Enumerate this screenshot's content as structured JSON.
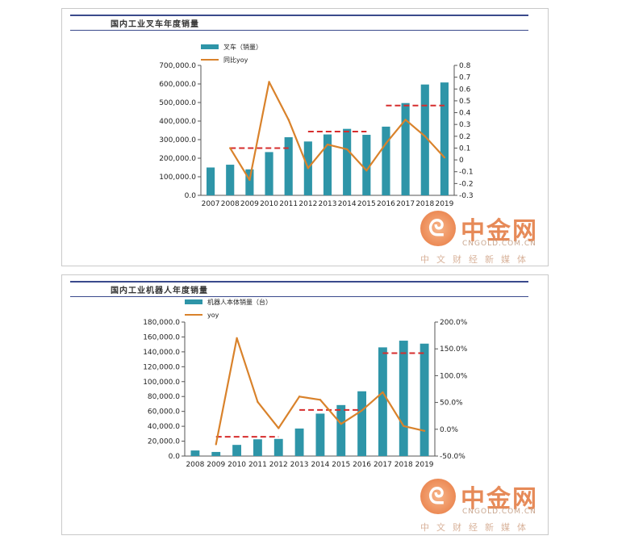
{
  "charts": [
    {
      "title": "国内工业叉车年度销量",
      "legend_bar": "叉车（销量）",
      "legend_line": "同比yoy",
      "watermark": {
        "name": "中金网",
        "url": "CNGOLD.COM.CN",
        "sub": "中文财经新媒体"
      }
    },
    {
      "title": "国内工业机器人年度销量",
      "legend_bar": "机器人本体销量（台）",
      "legend_line": "yoy",
      "watermark": {
        "name": "中金网",
        "url": "CNGOLD.COM.CN",
        "sub": "中文财经新媒体"
      }
    }
  ],
  "chart_data": [
    {
      "type": "bar",
      "title": "国内工业叉车年度销量",
      "categories": [
        "2007",
        "2008",
        "2009",
        "2010",
        "2011",
        "2012",
        "2013",
        "2014",
        "2015",
        "2016",
        "2017",
        "2018",
        "2019"
      ],
      "series": [
        {
          "name": "叉车（销量）",
          "type": "bar",
          "axis": "left",
          "color": "#2e95a8",
          "values": [
            150000,
            165000,
            140000,
            233000,
            313000,
            290000,
            328000,
            358000,
            326000,
            370000,
            497000,
            597000,
            608000
          ]
        },
        {
          "name": "同比yoy",
          "type": "line",
          "axis": "right",
          "color": "#d9822b",
          "values": [
            null,
            0.1,
            -0.17,
            0.66,
            0.34,
            -0.07,
            0.13,
            0.09,
            -0.09,
            0.14,
            0.34,
            0.2,
            0.02
          ]
        }
      ],
      "reference_lines": [
        {
          "from": "2008",
          "to": "2011",
          "value": 0.1,
          "axis": "right",
          "style": "dashed",
          "color": "#d62d2d"
        },
        {
          "from": "2012",
          "to": "2015",
          "value": 0.24,
          "axis": "right",
          "style": "dashed",
          "color": "#d62d2d"
        },
        {
          "from": "2016",
          "to": "2019",
          "value": 0.46,
          "axis": "right",
          "style": "dashed",
          "color": "#d62d2d"
        }
      ],
      "y_left": {
        "min": 0,
        "max": 700000,
        "step": 100000,
        "ticks": [
          "0.0",
          "100,000.0",
          "200,000.0",
          "300,000.0",
          "400,000.0",
          "500,000.0",
          "600,000.0",
          "700,000.0"
        ]
      },
      "y_right": {
        "min": -0.3,
        "max": 0.8,
        "step": 0.1,
        "ticks": [
          "-0.3",
          "-0.2",
          "-0.1",
          "0",
          "0.1",
          "0.2",
          "0.3",
          "0.4",
          "0.5",
          "0.6",
          "0.7",
          "0.8"
        ]
      },
      "legend_position": "top-left",
      "grid": false
    },
    {
      "type": "bar",
      "title": "国内工业机器人年度销量",
      "categories": [
        "2008",
        "2009",
        "2010",
        "2011",
        "2012",
        "2013",
        "2014",
        "2015",
        "2016",
        "2017",
        "2018",
        "2019"
      ],
      "series": [
        {
          "name": "机器人本体销量（台）",
          "type": "bar",
          "axis": "left",
          "color": "#2e95a8",
          "values": [
            7500,
            5500,
            15000,
            22500,
            23000,
            37000,
            57000,
            68500,
            87000,
            146000,
            155000,
            151000
          ]
        },
        {
          "name": "yoy",
          "type": "line",
          "axis": "right",
          "color": "#d9822b",
          "values": [
            null,
            -0.28,
            1.7,
            0.51,
            0.02,
            0.61,
            0.55,
            0.1,
            0.35,
            0.69,
            0.06,
            -0.03
          ]
        }
      ],
      "reference_lines": [
        {
          "from": "2009",
          "to": "2012",
          "value": -0.14,
          "axis": "right",
          "style": "dashed",
          "color": "#d62d2d"
        },
        {
          "from": "2013",
          "to": "2016",
          "value": 0.36,
          "axis": "right",
          "style": "dashed",
          "color": "#d62d2d"
        },
        {
          "from": "2017",
          "to": "2019",
          "value": 1.42,
          "axis": "right",
          "style": "dashed",
          "color": "#d62d2d"
        }
      ],
      "y_left": {
        "min": 0,
        "max": 180000,
        "step": 20000,
        "ticks": [
          "0.0",
          "20,000.0",
          "40,000.0",
          "60,000.0",
          "80,000.0",
          "100,000.0",
          "120,000.0",
          "140,000.0",
          "160,000.0",
          "180,000.0"
        ]
      },
      "y_right": {
        "min": -0.5,
        "max": 2.0,
        "step": 0.5,
        "ticks": [
          "-50.0%",
          "0.0%",
          "50.0%",
          "100.0%",
          "150.0%",
          "200.0%"
        ]
      },
      "legend_position": "top-left",
      "grid": false
    }
  ]
}
